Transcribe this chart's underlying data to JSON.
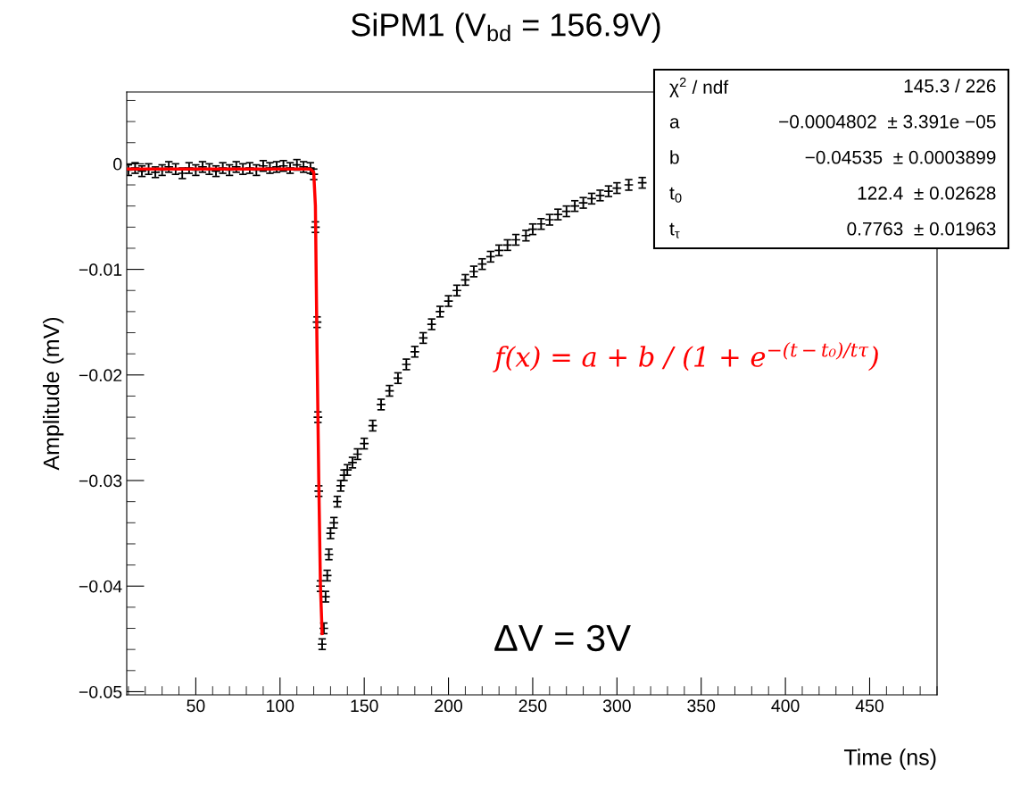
{
  "chart_data": {
    "type": "scatter",
    "title": "SiPM1 (V$_{bd}$ = 156.9V)",
    "xlabel": "Time (ns)",
    "ylabel": "Amplitude (mV)",
    "xlim": [
      9,
      490
    ],
    "xticks": [
      50,
      100,
      150,
      200,
      250,
      300,
      350,
      400,
      450
    ],
    "ylim": [
      -0.0503,
      0.0068
    ],
    "yticks": [
      {
        "value": -0.05,
        "label": "−0.05"
      },
      {
        "value": -0.04,
        "label": "−0.04"
      },
      {
        "value": -0.03,
        "label": "−0.03"
      },
      {
        "value": -0.02,
        "label": "−0.02"
      },
      {
        "value": -0.01,
        "label": "−0.01"
      },
      0
    ],
    "grid": false,
    "legend": false,
    "series": [
      {
        "color": "#000000",
        "marker": "cross",
        "x": [
          10,
          14,
          18,
          22,
          26,
          30,
          34,
          38,
          42,
          46,
          50,
          54,
          58,
          62,
          66,
          70,
          74,
          78,
          82,
          86,
          90,
          94,
          98,
          102,
          106,
          110,
          114,
          118,
          120,
          121,
          122,
          122.5,
          123,
          124,
          125,
          126,
          127,
          128,
          129,
          130,
          132,
          134,
          136,
          138,
          140,
          143,
          146,
          150,
          155,
          160,
          165,
          170,
          175,
          180,
          185,
          190,
          195,
          200,
          205,
          210,
          215,
          220,
          225,
          230,
          235,
          240,
          246,
          250,
          255,
          260,
          265,
          270,
          275,
          280,
          285,
          290,
          295,
          300,
          307,
          315
        ],
        "values": [
          -0.0006,
          -0.0004,
          -0.0007,
          -0.0005,
          -0.0008,
          -0.0006,
          -0.0003,
          -0.0005,
          -0.0009,
          -0.0004,
          -0.0006,
          -0.0003,
          -0.0005,
          -0.0007,
          -0.0004,
          -0.0006,
          -0.0003,
          -0.0005,
          -0.0004,
          -0.0006,
          -0.0002,
          -0.0004,
          -0.0003,
          -0.0002,
          -0.0004,
          -0.0001,
          -0.0003,
          -0.0004,
          -0.001,
          -0.006,
          -0.015,
          -0.024,
          -0.031,
          -0.04,
          -0.0455,
          -0.044,
          -0.041,
          -0.039,
          -0.037,
          -0.035,
          -0.034,
          -0.032,
          -0.0305,
          -0.0295,
          -0.029,
          -0.0283,
          -0.0275,
          -0.0265,
          -0.0248,
          -0.0228,
          -0.0215,
          -0.0203,
          -0.019,
          -0.0178,
          -0.0165,
          -0.0152,
          -0.014,
          -0.013,
          -0.012,
          -0.011,
          -0.0102,
          -0.0095,
          -0.0088,
          -0.0082,
          -0.0077,
          -0.0072,
          -0.0068,
          -0.0062,
          -0.0057,
          -0.0053,
          -0.0048,
          -0.0045,
          -0.004,
          -0.0037,
          -0.0033,
          -0.003,
          -0.0026,
          -0.0023,
          -0.002,
          -0.0018
        ],
        "errors": [
          0.0005,
          0.0005,
          0.0005,
          0.0005,
          0.0005,
          0.0005,
          0.0005,
          0.0005,
          0.0005,
          0.0005,
          0.0005,
          0.0005,
          0.0005,
          0.0005,
          0.0005,
          0.0005,
          0.0005,
          0.0005,
          0.0005,
          0.0005,
          0.0005,
          0.0005,
          0.0005,
          0.0005,
          0.0005,
          0.0005,
          0.0005,
          0.0005,
          0.0005,
          0.0005,
          0.0005,
          0.0005,
          0.0005,
          0.0005,
          0.0005,
          0.0005,
          0.0005,
          0.0005,
          0.0005,
          0.0005,
          0.0005,
          0.0005,
          0.0005,
          0.0005,
          0.0005,
          0.0005,
          0.0005,
          0.0005,
          0.0005,
          0.0005,
          0.0005,
          0.0005,
          0.0005,
          0.0005,
          0.0005,
          0.0005,
          0.0005,
          0.0005,
          0.0005,
          0.0005,
          0.0005,
          0.0005,
          0.0005,
          0.0005,
          0.0005,
          0.0005,
          0.0005,
          0.0005,
          0.0005,
          0.0005,
          0.0005,
          0.0005,
          0.0005,
          0.0005,
          0.0005,
          0.0005,
          0.0005,
          0.0005,
          0.0005,
          0.0005
        ]
      },
      {
        "type": "line",
        "color": "#ff0000",
        "x": [
          10,
          118,
          120,
          121,
          122,
          123,
          124,
          125
        ],
        "values": [
          -0.0005,
          -0.0005,
          -0.0008,
          -0.004,
          -0.018,
          -0.03,
          -0.04,
          -0.0445
        ]
      }
    ],
    "annotations": [
      "χ$^{2}$ / ndf",
      "145.3 / 226",
      "a",
      "−0.0004802  ± 3.391e −05",
      "b",
      "−0.04535  ± 0.0003899",
      "t$_{0}$",
      "122.4  ± 0.02628",
      "t$_{τ}$",
      "0.7763  ± 0.01963",
      "f(x) = a + b / (1 + e$^{−(t−t₀)/tτ}$)",
      "ΔV = 3V"
    ]
  }
}
